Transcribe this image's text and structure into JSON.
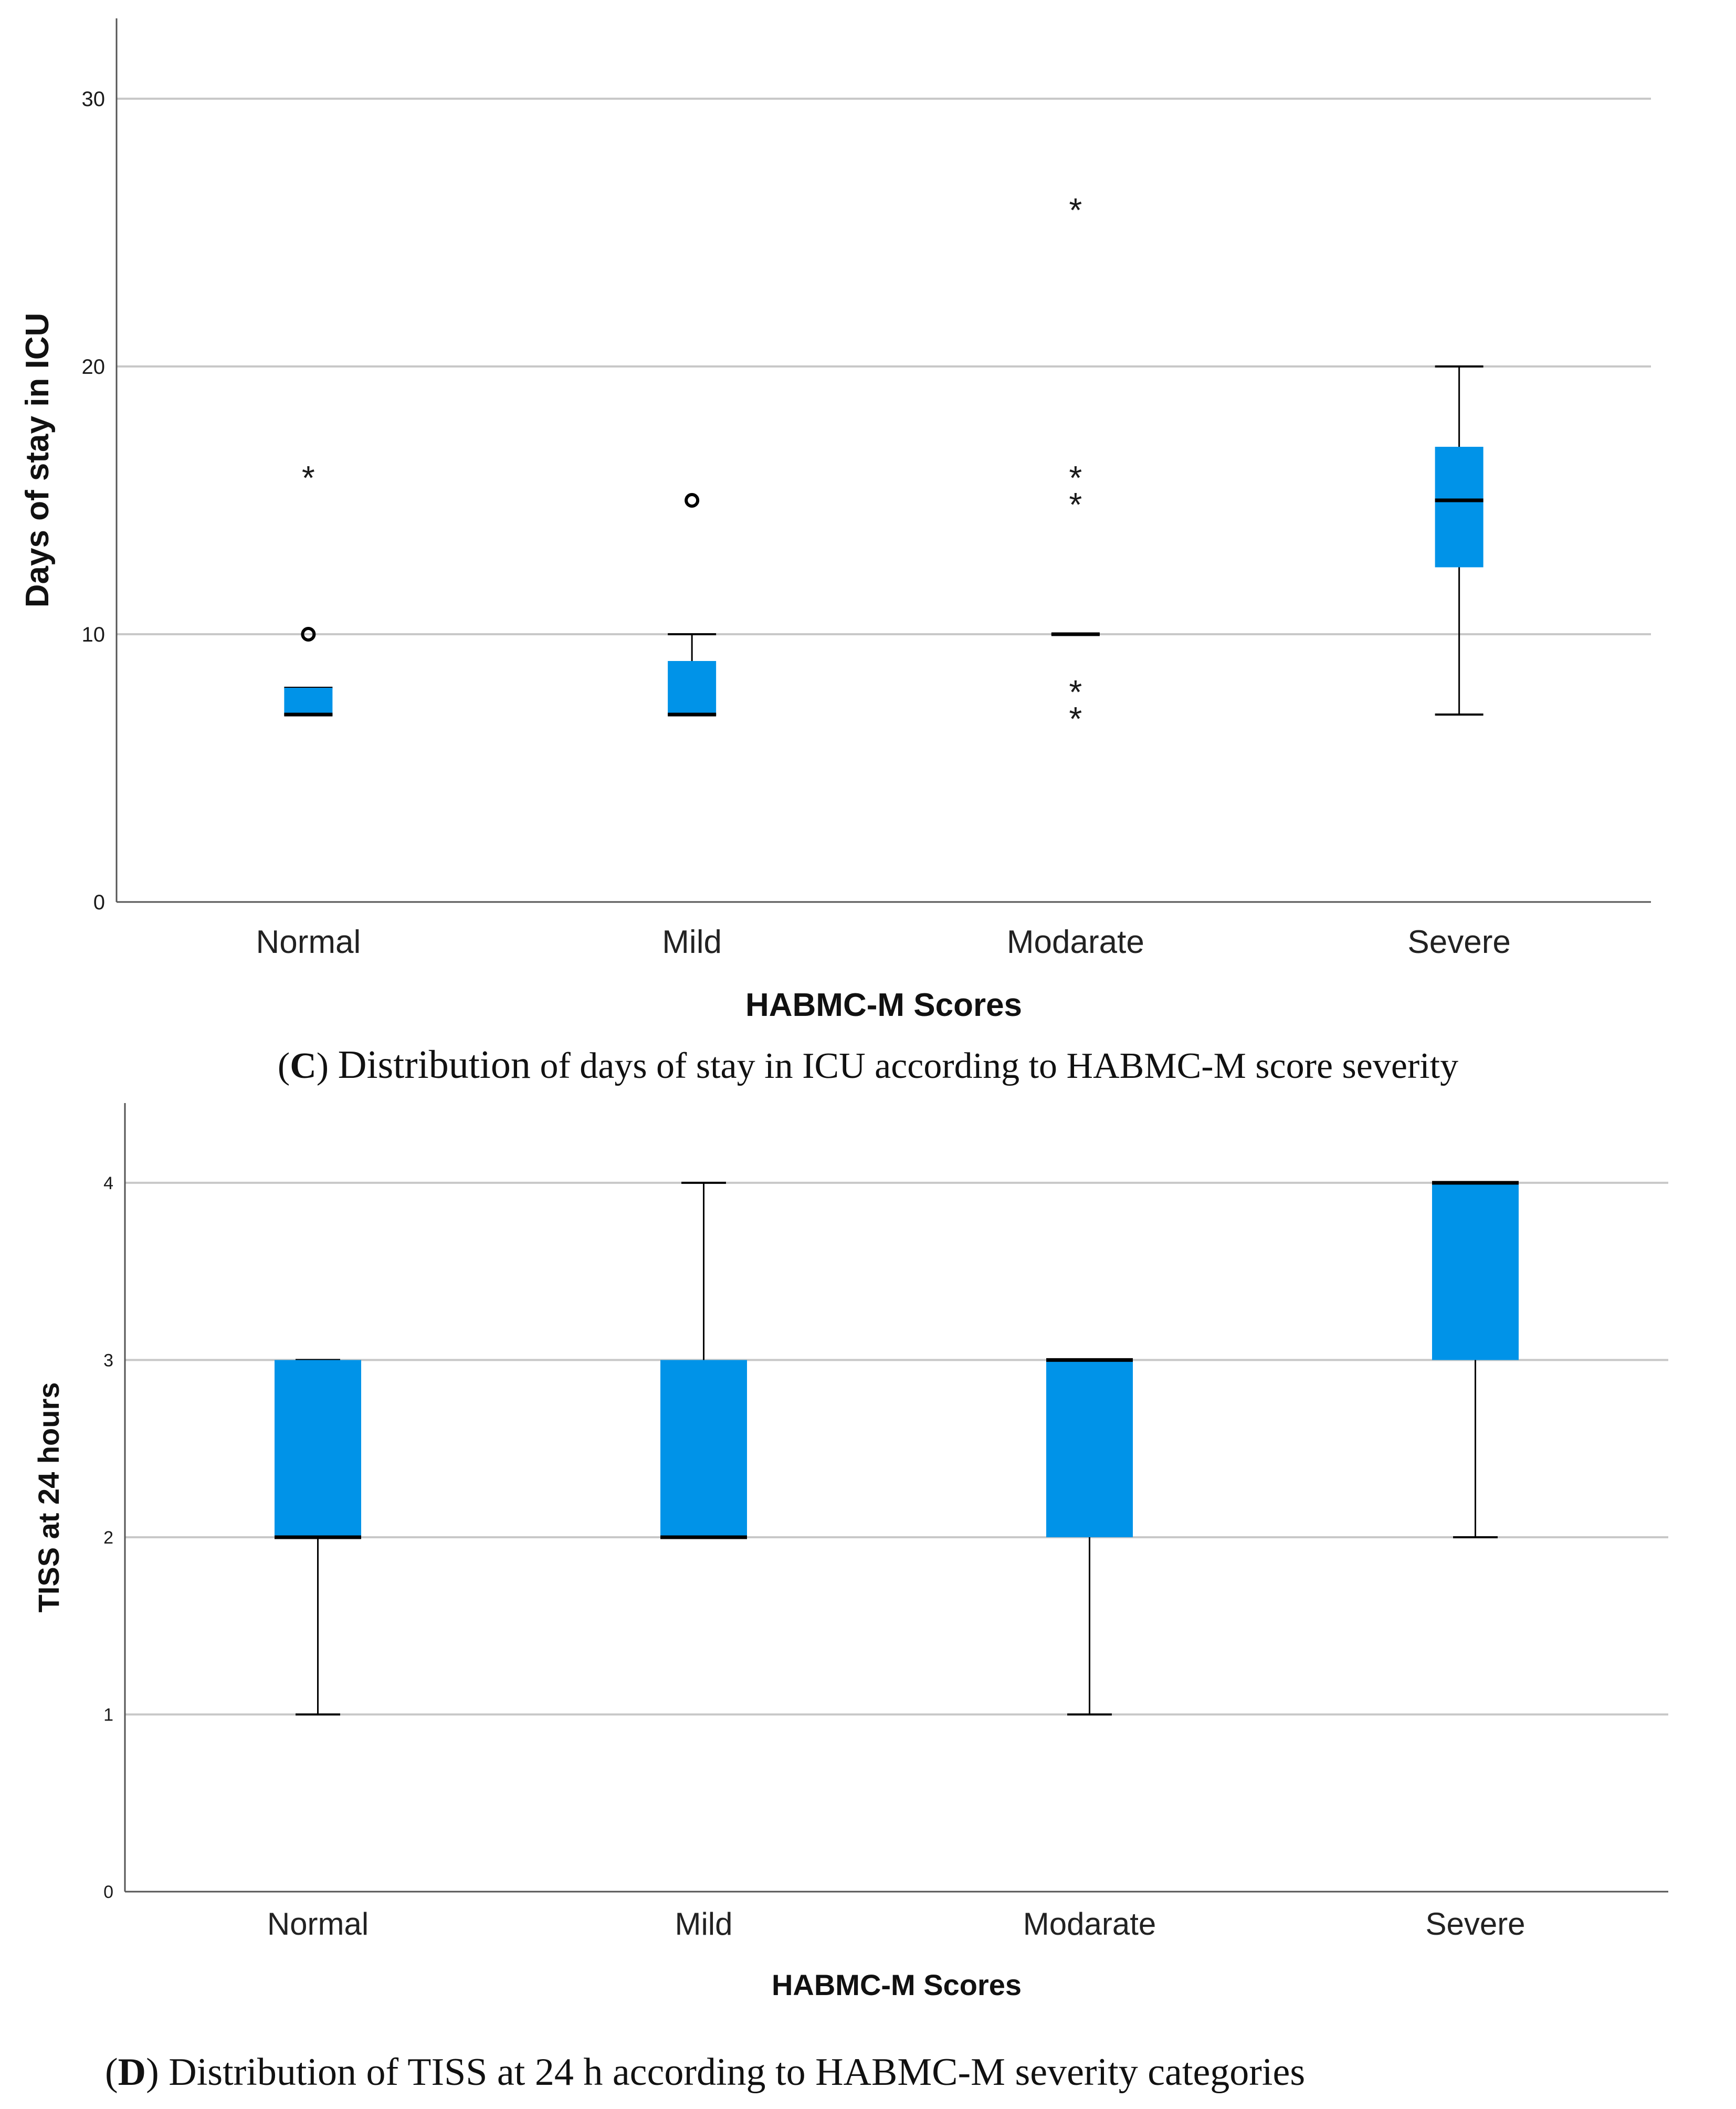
{
  "colors": {
    "box_fill": "#0093e8",
    "grid": "#c8c8c8",
    "axis": "#555555",
    "line": "#000000"
  },
  "chart_data": [
    {
      "type": "boxplot",
      "panel_letter": "C",
      "caption_first": "Distribution",
      "caption_rest": "of days of stay in ICU according to HABMC-M score severity",
      "xlabel": "HABMC-M Scores",
      "ylabel": "Days of stay in ICU",
      "ylim": [
        0,
        33
      ],
      "yticks": [
        0,
        10,
        20,
        30
      ],
      "categories": [
        "Normal",
        "Mild",
        "Modarate",
        "Severe"
      ],
      "boxes": [
        {
          "whisker_low": 7,
          "q1": 7,
          "median": 7,
          "q3": 8,
          "whisker_high": 8,
          "outliers": [
            10
          ],
          "extremes": [
            16
          ]
        },
        {
          "whisker_low": 7,
          "q1": 7,
          "median": 7,
          "q3": 9,
          "whisker_high": 10,
          "outliers": [
            15
          ],
          "extremes": []
        },
        {
          "whisker_low": 10,
          "q1": 10,
          "median": 10,
          "q3": 10,
          "whisker_high": 10,
          "outliers": [],
          "extremes": [
            7,
            8,
            15,
            16,
            26
          ]
        },
        {
          "whisker_low": 7,
          "q1": 12.5,
          "median": 15,
          "q3": 17,
          "whisker_high": 20,
          "outliers": [],
          "extremes": []
        }
      ]
    },
    {
      "type": "boxplot",
      "panel_letter": "D",
      "caption_first": "Distribution",
      "caption_rest": "of TISS at 24 h according to HABMC-M severity categories",
      "xlabel": "HABMC-M Scores",
      "ylabel": "TISS at 24 hours",
      "ylim": [
        0,
        4.45
      ],
      "yticks": [
        0,
        1,
        2,
        3,
        4
      ],
      "categories": [
        "Normal",
        "Mild",
        "Modarate",
        "Severe"
      ],
      "boxes": [
        {
          "whisker_low": 1,
          "q1": 2,
          "median": 2,
          "q3": 3,
          "whisker_high": 3,
          "outliers": [],
          "extremes": []
        },
        {
          "whisker_low": 2,
          "q1": 2,
          "median": 2,
          "q3": 3,
          "whisker_high": 4,
          "outliers": [],
          "extremes": []
        },
        {
          "whisker_low": 1,
          "q1": 2,
          "median": 3,
          "q3": 3,
          "whisker_high": 3,
          "outliers": [],
          "extremes": []
        },
        {
          "whisker_low": 2,
          "q1": 3,
          "median": 4,
          "q3": 4,
          "whisker_high": 4,
          "outliers": [],
          "extremes": []
        }
      ]
    }
  ]
}
